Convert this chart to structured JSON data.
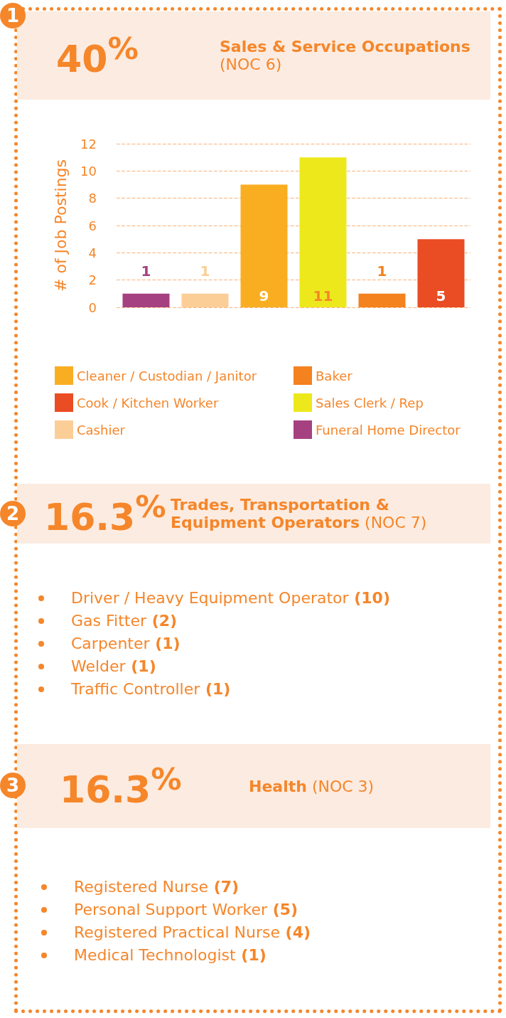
{
  "chart_data": [
    {
      "type": "bar",
      "title": "Sales & Service Occupations",
      "subtitle": "(NOC 6)",
      "annotations": [
        "1",
        "40$^{%}$"
      ],
      "ylabel": "# of Job Postings",
      "categories": [
        null,
        null,
        null,
        null,
        null,
        null
      ],
      "series": [
        {
          "name": "Cleaner / Custodian / Janitor",
          "color": "#f9ae22",
          "values": [
            null,
            null,
            9,
            null,
            null,
            null
          ]
        },
        {
          "name": "Baker",
          "color": "#f4821f",
          "values": [
            null,
            null,
            null,
            null,
            1,
            null
          ]
        },
        {
          "name": "Cook / Kitchen Worker",
          "color": "#ea4c23",
          "values": [
            null,
            null,
            null,
            null,
            null,
            5
          ]
        },
        {
          "name": "Sales Clerk / Rep",
          "color": "#ede81c",
          "values": [
            null,
            null,
            null,
            11,
            null,
            null
          ]
        },
        {
          "name": "Cashier",
          "color": "#fcce97",
          "values": [
            null,
            1,
            null,
            null,
            null,
            null
          ]
        },
        {
          "name": "Funeral Home Director",
          "color": "#a64181",
          "values": [
            1,
            null,
            null,
            null,
            null,
            null
          ]
        }
      ],
      "ylim": [
        0,
        12
      ],
      "yticks": [
        0,
        2,
        4,
        6,
        8,
        10,
        12
      ],
      "grid": "y",
      "legend": "bottom",
      "data_labels": true
    },
    {
      "type": "other",
      "title": "Trades, Transportation & Equipment Operators",
      "subtitle": "(NOC 7)",
      "annotations": [
        "2",
        "16.3$^{%}$",
        "Driver / Heavy Equipment Operator (10)",
        "Gas Fitter (2)",
        "Carpenter (1)",
        "Welder (1)",
        "Traffic Controller (1)"
      ]
    },
    {
      "type": "other",
      "title": "Health",
      "subtitle": "(NOC 3)",
      "annotations": [
        "3",
        "16.3$^{%}$",
        "Registered Nurse (7)",
        "Personal Support Worker (5)",
        "Registered Practical Nurse (4)",
        "Medical Technologist (1)"
      ]
    }
  ]
}
